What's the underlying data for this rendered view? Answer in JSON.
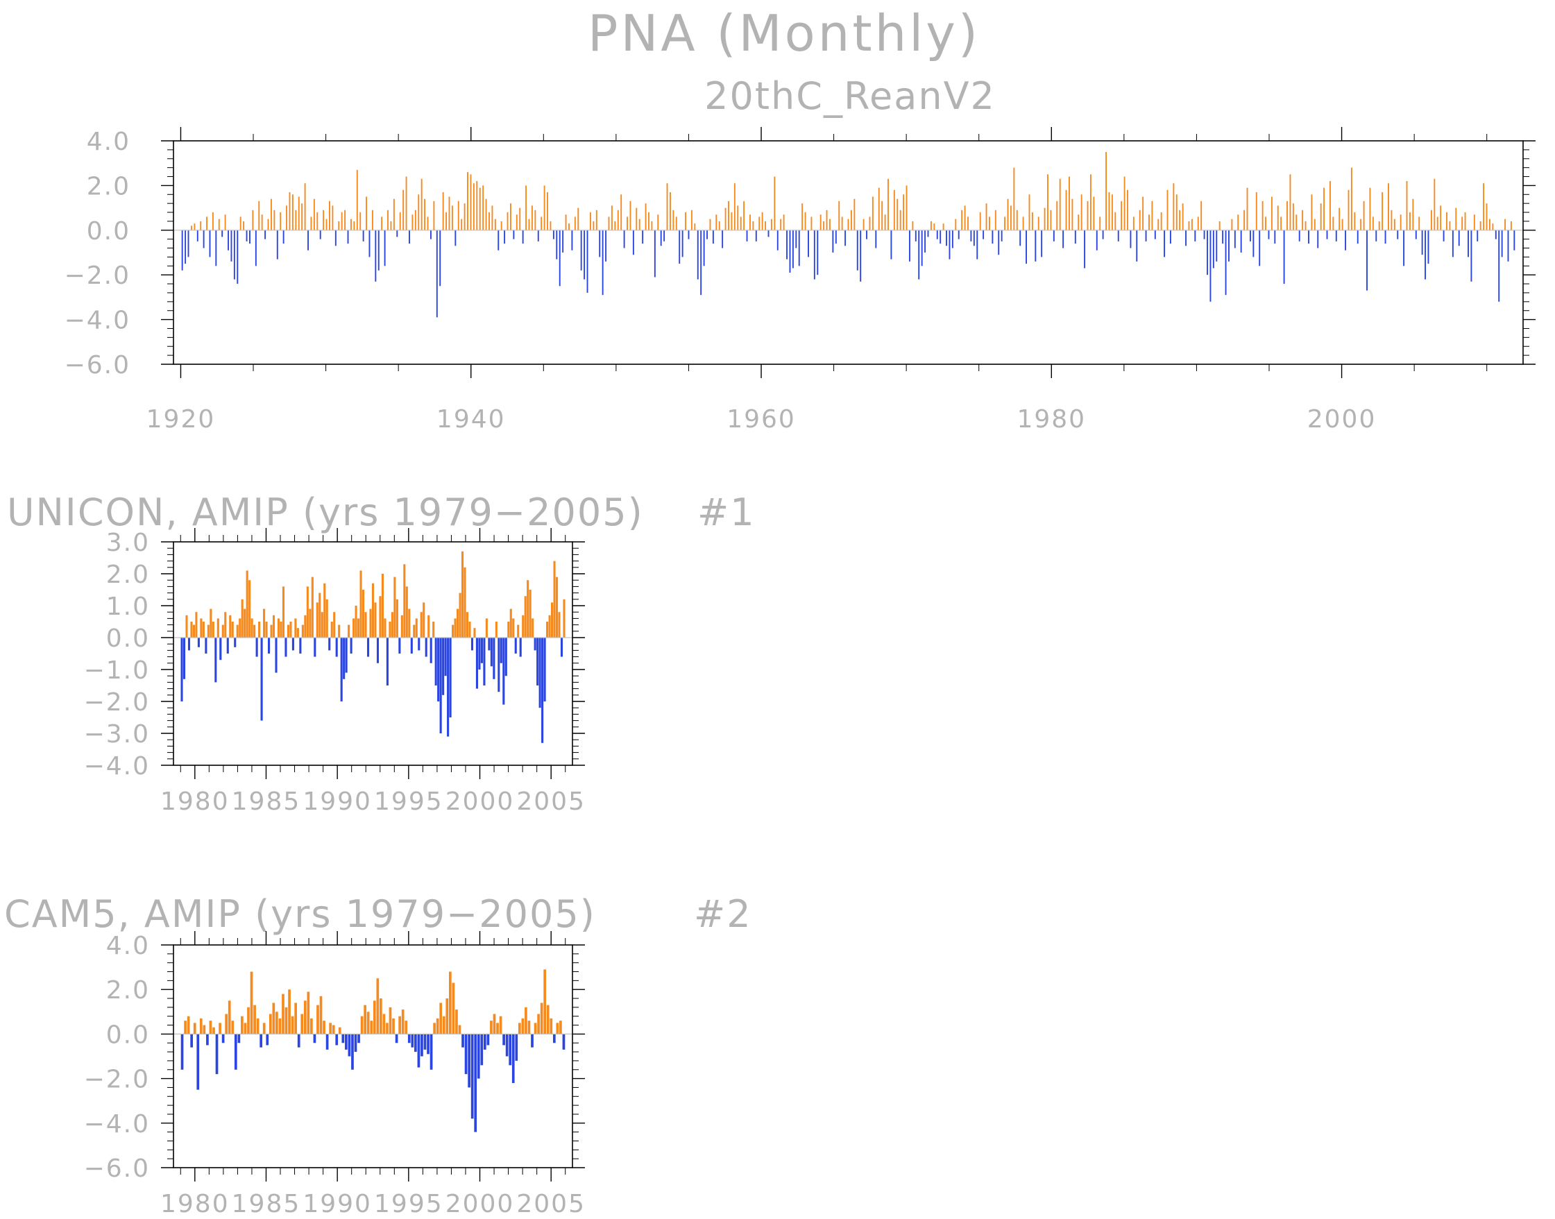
{
  "figure": {
    "title": "PNA (Monthly)",
    "subtitle": "20thC_ReanV2"
  },
  "colors": {
    "positive": "#f58a1f",
    "negative": "#2b45e0",
    "text": "#b3b3b3",
    "frame": "#000000",
    "zero_line": "#bfbfbf"
  },
  "panels": [
    {
      "title": "",
      "number": "",
      "yticks": [
        "4.0",
        "2.0",
        "0.0",
        "−2.0",
        "−4.0",
        "−6.0"
      ],
      "xticks": [
        "1920",
        "1940",
        "1960",
        "1980",
        "2000"
      ]
    },
    {
      "title": "UNICON, AMIP (yrs 1979−2005)",
      "number": "#1",
      "yticks": [
        "3.0",
        "2.0",
        "1.0",
        "0.0",
        "−1.0",
        "−2.0",
        "−3.0",
        "−4.0"
      ],
      "xticks": [
        "1980",
        "1985",
        "1990",
        "1995",
        "2000",
        "2005"
      ]
    },
    {
      "title": "CAM5, AMIP (yrs 1979−2005)",
      "number": "#2",
      "yticks": [
        "4.0",
        "2.0",
        "0.0",
        "−2.0",
        "−4.0",
        "−6.0"
      ],
      "xticks": [
        "1980",
        "1985",
        "1990",
        "1995",
        "2000",
        "2005"
      ]
    }
  ],
  "chart_data": [
    {
      "type": "bar",
      "subtitle": "20thC_ReanV2",
      "x_start": 1920.0,
      "x_end": 2012.0,
      "xlim": [
        1919.5,
        2012.5
      ],
      "ylim": [
        -6,
        4
      ],
      "xticks": [
        1920,
        1940,
        1960,
        1980,
        2000
      ],
      "yticks": [
        4,
        2,
        0,
        -2,
        -4,
        -6
      ],
      "values": [
        -1.8,
        -1.5,
        -1.2,
        0.2,
        0.3,
        -0.5,
        0.4,
        -0.8,
        0.6,
        -1.2,
        0.8,
        -1.6,
        0.5,
        -0.3,
        0.7,
        -0.9,
        -1.4,
        -2.2,
        -2.4,
        0.6,
        0.4,
        -0.5,
        -0.6,
        0.9,
        -1.6,
        1.3,
        0.7,
        -0.4,
        0.5,
        1.4,
        0.9,
        -1.3,
        0.8,
        -0.6,
        1.1,
        1.7,
        1.6,
        0.9,
        1.5,
        1.2,
        2.1,
        -0.9,
        0.6,
        1.4,
        0.8,
        -0.4,
        0.9,
        0.5,
        1.3,
        1.1,
        -0.7,
        0.4,
        0.8,
        0.9,
        -0.6,
        0.5,
        0.4,
        2.7,
        0.8,
        -0.5,
        1.5,
        -1.2,
        0.9,
        -2.3,
        -1.8,
        0.6,
        -1.6,
        0.9,
        0.4,
        1.4,
        -0.3,
        0.8,
        1.8,
        2.4,
        -0.6,
        0.7,
        0.9,
        1.6,
        2.3,
        1.4,
        0.6,
        -0.4,
        1.3,
        -3.9,
        -2.5,
        1.7,
        0.8,
        1.5,
        1.1,
        -0.7,
        1.3,
        0.5,
        1.2,
        2.6,
        2.5,
        2.1,
        2.2,
        1.9,
        2.0,
        1.4,
        0.8,
        1.1,
        0.5,
        -0.9,
        0.4,
        -0.6,
        0.8,
        1.2,
        -0.4,
        0.7,
        1.0,
        -0.6,
        2.0,
        0.5,
        1.1,
        0.9,
        -0.5,
        0.6,
        2.0,
        1.7,
        0.4,
        -0.4,
        -1.3,
        -2.5,
        -1.0,
        0.7,
        0.3,
        -0.9,
        0.6,
        1.0,
        -1.8,
        -2.2,
        -2.8,
        0.8,
        0.4,
        0.9,
        -1.2,
        -2.9,
        -1.4,
        0.6,
        1.1,
        0.4,
        0.9,
        1.6,
        -0.8,
        0.6,
        1.3,
        -1.1,
        1.0,
        0.5,
        -0.6,
        1.2,
        0.8,
        0.4,
        -2.1,
        0.7,
        -0.7,
        -0.5,
        2.1,
        1.7,
        0.9,
        0.6,
        -1.5,
        -1.2,
        0.8,
        -0.4,
        0.9,
        0.3,
        -2.2,
        -2.9,
        -1.6,
        -0.4,
        0.5,
        -0.6,
        0.7,
        0.4,
        -0.8,
        1.0,
        1.3,
        0.8,
        2.1,
        1.1,
        0.6,
        1.3,
        -0.5,
        0.7,
        0.4,
        -0.5,
        0.6,
        0.8,
        0.4,
        -0.3,
        0.5,
        2.4,
        -0.9,
        0.5,
        0.7,
        -1.3,
        -1.9,
        -1.7,
        -0.8,
        -1.6,
        1.2,
        0.8,
        -1.2,
        0.6,
        -2.2,
        -2.0,
        0.7,
        0.4,
        0.9,
        0.5,
        -1.0,
        -0.6,
        1.3,
        0.6,
        -0.7,
        0.5,
        0.9,
        1.4,
        -1.8,
        -2.3,
        0.5,
        -0.4,
        0.6,
        1.5,
        -0.8,
        1.9,
        1.3,
        0.7,
        2.3,
        -1.3,
        1.8,
        1.4,
        0.9,
        1.6,
        2.0,
        -1.4,
        0.4,
        -0.5,
        -2.2,
        -1.6,
        -1.0,
        -0.3,
        0.4,
        0.3,
        -0.4,
        -0.6,
        0.3,
        -0.7,
        -1.3,
        -0.8,
        0.5,
        -0.4,
        0.9,
        1.1,
        0.6,
        -0.5,
        -0.7,
        -1.3,
        0.8,
        -0.4,
        1.2,
        0.6,
        -0.6,
        0.9,
        -1.1,
        -0.5,
        0.6,
        1.4,
        1.1,
        2.8,
        0.9,
        -0.7,
        0.6,
        -1.5,
        1.6,
        0.8,
        -1.4,
        0.6,
        -1.2,
        1.0,
        2.5,
        0.9,
        -0.5,
        1.3,
        2.3,
        -0.8,
        1.8,
        2.4,
        1.4,
        -0.6,
        0.7,
        1.6,
        -1.7,
        1.3,
        2.5,
        1.5,
        -0.9,
        0.6,
        -0.4,
        3.5,
        1.7,
        1.6,
        0.8,
        -0.5,
        1.3,
        2.4,
        1.8,
        -0.8,
        0.6,
        -1.4,
        0.9,
        1.5,
        -0.5,
        0.7,
        1.3,
        -0.4,
        0.5,
        0.8,
        -1.2,
        1.8,
        -0.6,
        2.1,
        1.6,
        0.9,
        1.2,
        -0.7,
        0.4,
        0.5,
        -0.5,
        0.6,
        1.3,
        -0.4,
        -2.0,
        -3.2,
        -1.7,
        -1.4,
        0.4,
        -0.6,
        -2.9,
        -1.4,
        0.5,
        -0.8,
        0.7,
        -1.0,
        0.9,
        1.9,
        -0.5,
        -1.2,
        1.7,
        -1.6,
        1.3,
        0.6,
        -0.4,
        1.5,
        -0.6,
        1.1,
        0.6,
        -2.4,
        1.3,
        2.5,
        1.2,
        0.7,
        -0.5,
        0.9,
        0.4,
        -0.6,
        1.6,
        0.5,
        -0.8,
        1.2,
        1.9,
        -0.4,
        2.2,
        0.6,
        -0.5,
        1.0,
        0.5,
        -0.9,
        1.8,
        2.8,
        0.8,
        -0.6,
        0.5,
        1.3,
        -2.7,
        1.9,
        0.6,
        -0.5,
        0.4,
        1.7,
        -0.6,
        2.1,
        0.9,
        0.5,
        -0.4,
        0.7,
        -1.6,
        2.2,
        0.8,
        1.4,
        -0.4,
        0.6,
        -1.1,
        -2.2,
        -1.5,
        0.9,
        2.3,
        0.6,
        1.1,
        -0.5,
        0.8,
        0.4,
        -1.2,
        1.0,
        -0.7,
        0.6,
        0.8,
        -1.2,
        -2.3,
        0.7,
        -0.5,
        0.4,
        2.1,
        1.2,
        0.5,
        0.3,
        -0.4,
        -3.2,
        -1.2,
        0.5,
        -1.4,
        0.4,
        -0.9
      ]
    },
    {
      "type": "bar",
      "subtitle": "UNICON, AMIP (yrs 1979−2005)",
      "x_start": 1979.0,
      "x_end": 2006.0,
      "xlim": [
        1978.5,
        2006.5
      ],
      "ylim": [
        -4,
        3
      ],
      "xticks": [
        1980,
        1985,
        1990,
        1995,
        2000,
        2005
      ],
      "yticks": [
        3,
        2,
        1,
        0,
        -1,
        -2,
        -3,
        -4
      ],
      "values": [
        -2.0,
        -1.3,
        0.7,
        -0.4,
        0.5,
        0.4,
        0.8,
        -0.3,
        0.6,
        0.5,
        -0.5,
        0.4,
        0.9,
        0.5,
        -1.4,
        0.6,
        -0.7,
        0.4,
        0.8,
        -0.5,
        0.7,
        0.5,
        -0.3,
        0.4,
        0.6,
        1.2,
        0.9,
        2.1,
        1.8,
        0.6,
        0.4,
        -0.6,
        0.5,
        -2.6,
        0.9,
        0.5,
        -0.5,
        0.4,
        0.7,
        -1.1,
        0.6,
        0.5,
        1.6,
        -0.6,
        0.4,
        0.5,
        -0.4,
        0.6,
        0.3,
        -0.5,
        0.4,
        0.7,
        1.6,
        0.9,
        1.9,
        -0.6,
        1.1,
        1.4,
        0.8,
        1.7,
        1.2,
        -0.4,
        0.5,
        0.8,
        -0.6,
        0.4,
        -2.0,
        -1.3,
        -1.1,
        0.4,
        -0.5,
        0.6,
        1.0,
        0.6,
        2.1,
        1.5,
        0.8,
        -0.6,
        0.9,
        1.7,
        1.1,
        -0.8,
        1.3,
        2.0,
        0.6,
        -1.5,
        0.5,
        0.8,
        1.9,
        1.2,
        -0.5,
        0.7,
        2.3,
        1.6,
        0.9,
        -0.5,
        0.4,
        0.6,
        -0.4,
        0.8,
        1.1,
        -0.6,
        0.7,
        -0.8,
        0.5,
        -1.5,
        -2.0,
        -3.0,
        -1.8,
        -1.2,
        -3.1,
        -2.5,
        0.4,
        0.6,
        0.9,
        1.4,
        2.7,
        2.2,
        0.8,
        0.5,
        -0.4,
        0.3,
        -1.6,
        -1.0,
        -0.8,
        -1.5,
        0.6,
        -0.4,
        -0.9,
        -1.3,
        0.5,
        -1.7,
        -0.8,
        -2.1,
        -1.2,
        0.5,
        0.9,
        0.6,
        -0.5,
        0.4,
        -0.6,
        0.7,
        1.3,
        1.8,
        1.5,
        0.6,
        -0.4,
        -1.5,
        -2.2,
        -3.3,
        -2.0,
        0.5,
        0.7,
        1.1,
        2.4,
        1.9,
        0.8,
        -0.6,
        1.2
      ]
    },
    {
      "type": "bar",
      "subtitle": "CAM5, AMIP (yrs 1979−2005)",
      "x_start": 1979.0,
      "x_end": 2006.0,
      "xlim": [
        1978.5,
        2006.5
      ],
      "ylim": [
        -6,
        4
      ],
      "xticks": [
        1980,
        1985,
        1990,
        1995,
        2000,
        2005
      ],
      "yticks": [
        4,
        2,
        0,
        -2,
        -4,
        -6
      ],
      "values": [
        -1.6,
        0.6,
        0.8,
        -0.6,
        0.5,
        -2.5,
        0.7,
        0.4,
        -0.5,
        0.6,
        0.3,
        -1.8,
        0.5,
        -0.4,
        0.9,
        1.5,
        0.6,
        -1.6,
        -0.4,
        0.8,
        0.5,
        1.2,
        2.8,
        1.3,
        0.7,
        -0.6,
        0.5,
        -0.5,
        0.9,
        1.4,
        1.0,
        0.7,
        1.8,
        1.2,
        2.0,
        0.8,
        1.4,
        -0.6,
        0.9,
        1.5,
        1.9,
        0.7,
        -0.4,
        1.3,
        1.7,
        0.6,
        -0.7,
        0.5,
        0.4,
        -0.5,
        0.3,
        -0.4,
        -0.7,
        -1.0,
        -1.6,
        -0.8,
        -0.4,
        0.8,
        1.3,
        1.0,
        0.6,
        1.5,
        2.5,
        1.6,
        0.9,
        0.5,
        1.2,
        0.7,
        -0.4,
        0.8,
        1.1,
        0.6,
        -0.4,
        -0.6,
        -0.8,
        -1.5,
        -1.0,
        -0.7,
        -0.9,
        -1.6,
        0.5,
        0.7,
        1.4,
        0.8,
        1.6,
        2.8,
        2.3,
        1.1,
        0.4,
        -0.6,
        -1.8,
        -2.4,
        -3.8,
        -4.4,
        -2.0,
        -1.4,
        -0.7,
        -0.5,
        0.6,
        0.9,
        0.5,
        0.8,
        -0.5,
        -1.0,
        -1.4,
        -2.2,
        -1.2,
        0.5,
        0.7,
        1.2,
        0.6,
        -0.6,
        0.5,
        0.9,
        1.4,
        2.9,
        1.3,
        0.7,
        -0.4,
        0.5,
        0.6,
        -0.7
      ]
    }
  ]
}
